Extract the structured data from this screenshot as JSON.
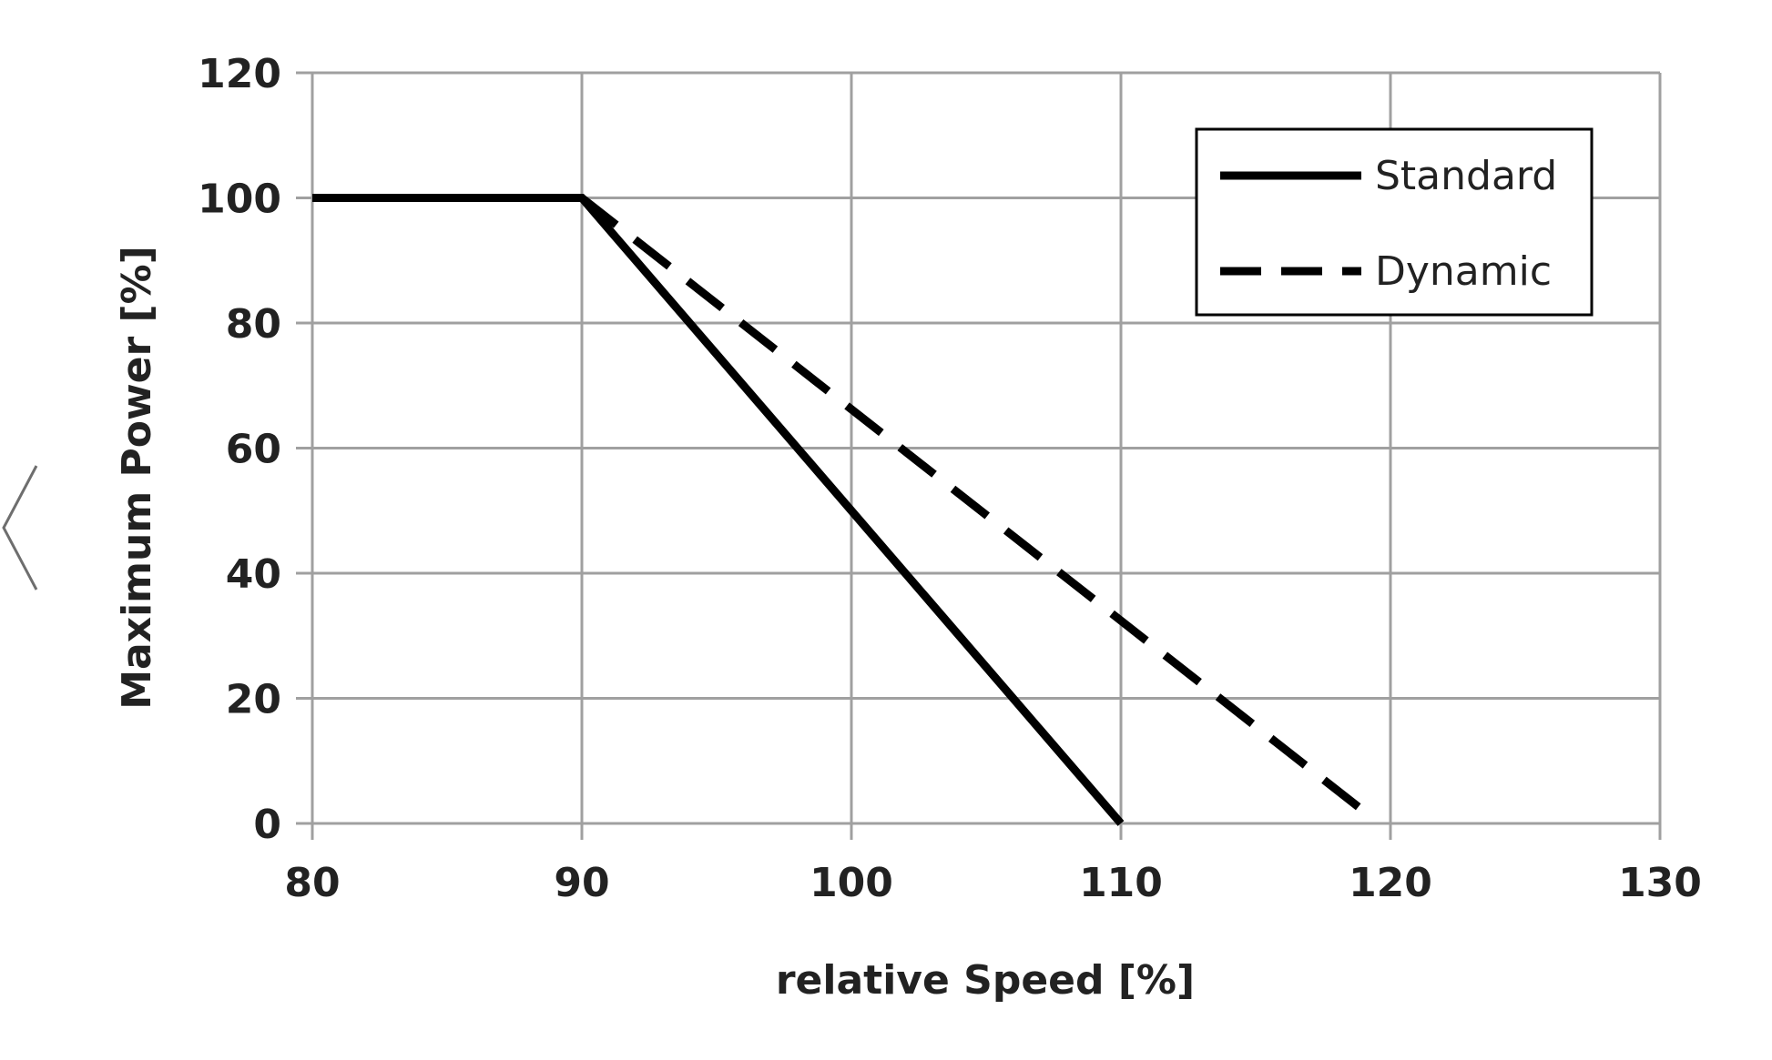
{
  "chart_data": {
    "type": "line",
    "title": "",
    "xlabel": "relative Speed [%]",
    "ylabel": "Maximum  Power [%]",
    "xlim": [
      80,
      130
    ],
    "ylim": [
      0,
      120
    ],
    "xticks": [
      80,
      90,
      100,
      110,
      120,
      130
    ],
    "yticks": [
      0,
      20,
      40,
      60,
      80,
      100,
      120
    ],
    "grid": true,
    "legend_position": "top-right",
    "series": [
      {
        "name": "Standard",
        "style": "solid",
        "color": "#000000",
        "x": [
          80,
          90,
          110
        ],
        "y": [
          100,
          100,
          0
        ]
      },
      {
        "name": "Dynamic",
        "style": "dashed",
        "color": "#000000",
        "x": [
          80,
          90,
          119
        ],
        "y": [
          100,
          100,
          2
        ]
      }
    ]
  },
  "nav": {
    "prev_icon": "chevron-left-icon"
  }
}
